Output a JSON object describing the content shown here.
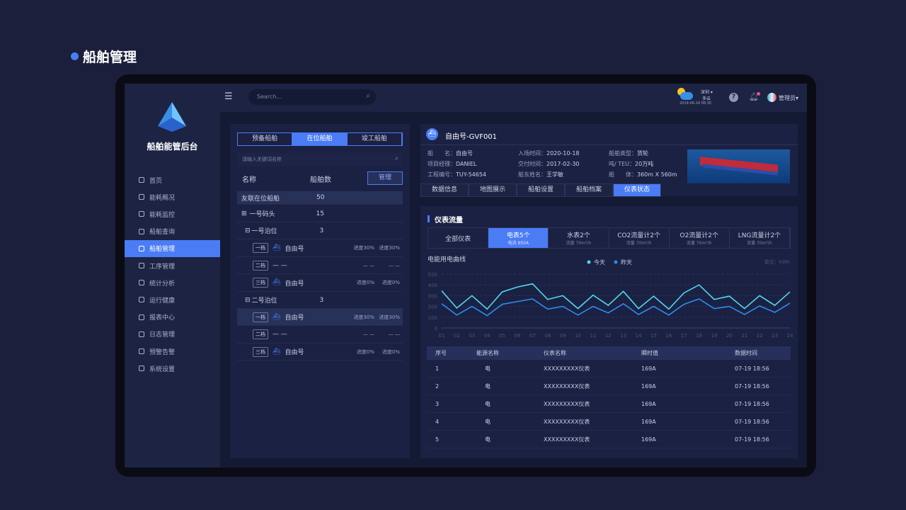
{
  "page_title": "船舶管理",
  "sidebar": {
    "brand": "船舶能管后台",
    "items": [
      {
        "label": "首页",
        "icon": "home-icon"
      },
      {
        "label": "能耗概况",
        "icon": "grid-icon"
      },
      {
        "label": "能耗监控",
        "icon": "monitor-icon"
      },
      {
        "label": "船舶查询",
        "icon": "ship-search-icon"
      },
      {
        "label": "船舶管理",
        "icon": "lock-icon",
        "active": true
      },
      {
        "label": "工序管理",
        "icon": "process-icon"
      },
      {
        "label": "统计分析",
        "icon": "bar-chart-icon"
      },
      {
        "label": "运行健康",
        "icon": "health-icon"
      },
      {
        "label": "报表中心",
        "icon": "report-icon"
      },
      {
        "label": "日志管理",
        "icon": "log-icon"
      },
      {
        "label": "预警告警",
        "icon": "bell-icon"
      },
      {
        "label": "系统设置",
        "icon": "gear-icon"
      }
    ]
  },
  "header": {
    "search_placeholder": "Search...",
    "weather": {
      "city": "深圳",
      "condition": "多云",
      "datetime": "2019-06-24  08:30"
    },
    "user": "管理员"
  },
  "left": {
    "tabs": [
      "预备船舶",
      "在位船舶",
      "竣工船舶"
    ],
    "active_tab": 1,
    "search_placeholder": "请输入关键词名称",
    "col_name": "名称",
    "col_count": "船舶数",
    "manage": "管理",
    "summary": {
      "name": "友联在位船舶",
      "count": "50"
    },
    "dock": {
      "name": "一号码头",
      "count": "15"
    },
    "berths": [
      {
        "name": "一号泊位",
        "count": "3",
        "slots": [
          {
            "tag": "一档",
            "ship": "自由号",
            "p1": "进度30%",
            "p2": "进度30%"
          },
          {
            "tag": "二档",
            "ship": "— —",
            "p1": "— —",
            "p2": "— —"
          },
          {
            "tag": "三档",
            "ship": "自由号",
            "p1": "进度0%",
            "p2": "进度0%"
          }
        ]
      },
      {
        "name": "二号泊位",
        "count": "3",
        "slots": [
          {
            "tag": "一档",
            "ship": "自由号",
            "p1": "进度30%",
            "p2": "进度30%",
            "selected": true
          },
          {
            "tag": "二档",
            "ship": "— —",
            "p1": "— —",
            "p2": "— —"
          },
          {
            "tag": "三档",
            "ship": "自由号",
            "p1": "进度0%",
            "p2": "进度0%"
          }
        ]
      }
    ]
  },
  "detail": {
    "title": "自由号-GVF001",
    "fields": [
      [
        "船　　名：",
        "自由号"
      ],
      [
        "入场时间：",
        "2020-10-18"
      ],
      [
        "船舶类型：",
        "货轮"
      ],
      [
        "项目经理：",
        "DANIEL"
      ],
      [
        "交付时间：",
        "2017-02-30"
      ],
      [
        "吨/ TEU：",
        "20万吨"
      ],
      [
        "工程编号：",
        "TUY-54654"
      ],
      [
        "船东姓名：",
        "王学敏"
      ],
      [
        "船　　体：",
        "360m X 560m"
      ]
    ],
    "tabs": [
      "数据信息",
      "地图展示",
      "船舶设置",
      "船舶档案",
      "仪表状态"
    ],
    "active_tab": 4
  },
  "meters": {
    "title": "仪表流量",
    "tabs": [
      {
        "label": "全部仪表",
        "sub": ""
      },
      {
        "label": "电表5个",
        "sub": "电流 850A"
      },
      {
        "label": "水表2个",
        "sub": "流量  70m³/h"
      },
      {
        "label": "CO2流量计2个",
        "sub": "流量  70m³/h"
      },
      {
        "label": "O2流量计2个",
        "sub": "流量  70m³/h"
      },
      {
        "label": "LNG流量计2个",
        "sub": "流量  70m³/h"
      }
    ],
    "active_tab": 1
  },
  "chart_data": {
    "type": "line",
    "title": "电能用电曲线",
    "unit": "单位：kWh",
    "legend_position": "top-center",
    "grid": true,
    "ylim": [
      0,
      500
    ],
    "yticks": [
      0,
      100,
      200,
      300,
      400,
      500
    ],
    "categories": [
      "01",
      "02",
      "03",
      "04",
      "05",
      "06",
      "07",
      "08",
      "09",
      "10",
      "11",
      "12",
      "13",
      "14",
      "15",
      "16",
      "17",
      "18",
      "19",
      "20",
      "21",
      "22",
      "23",
      "24"
    ],
    "series": [
      {
        "name": "今天",
        "color": "#4fd8f0",
        "values": [
          345,
          185,
          300,
          175,
          335,
          380,
          410,
          265,
          300,
          180,
          305,
          210,
          340,
          180,
          295,
          175,
          325,
          400,
          265,
          295,
          180,
          300,
          210,
          335
        ]
      },
      {
        "name": "昨天",
        "color": "#2d8cf0",
        "values": [
          225,
          120,
          200,
          115,
          220,
          245,
          270,
          175,
          200,
          120,
          200,
          140,
          225,
          125,
          200,
          120,
          220,
          270,
          180,
          200,
          125,
          205,
          145,
          230
        ]
      }
    ]
  },
  "table": {
    "headers": [
      "序号",
      "能源名称",
      "仪表名称",
      "瞬时值",
      "数据时间"
    ],
    "rows": [
      [
        "1",
        "电",
        "XXXXXXXXX仪表",
        "169A",
        "07-19  18:56"
      ],
      [
        "2",
        "电",
        "XXXXXXXXX仪表",
        "169A",
        "07-19  18:56"
      ],
      [
        "3",
        "电",
        "XXXXXXXXX仪表",
        "169A",
        "07-19  18:56"
      ],
      [
        "4",
        "电",
        "XXXXXXXXX仪表",
        "169A",
        "07-19  18:56"
      ],
      [
        "5",
        "电",
        "XXXXXXXXX仪表",
        "169A",
        "07-19  18:56"
      ]
    ]
  }
}
